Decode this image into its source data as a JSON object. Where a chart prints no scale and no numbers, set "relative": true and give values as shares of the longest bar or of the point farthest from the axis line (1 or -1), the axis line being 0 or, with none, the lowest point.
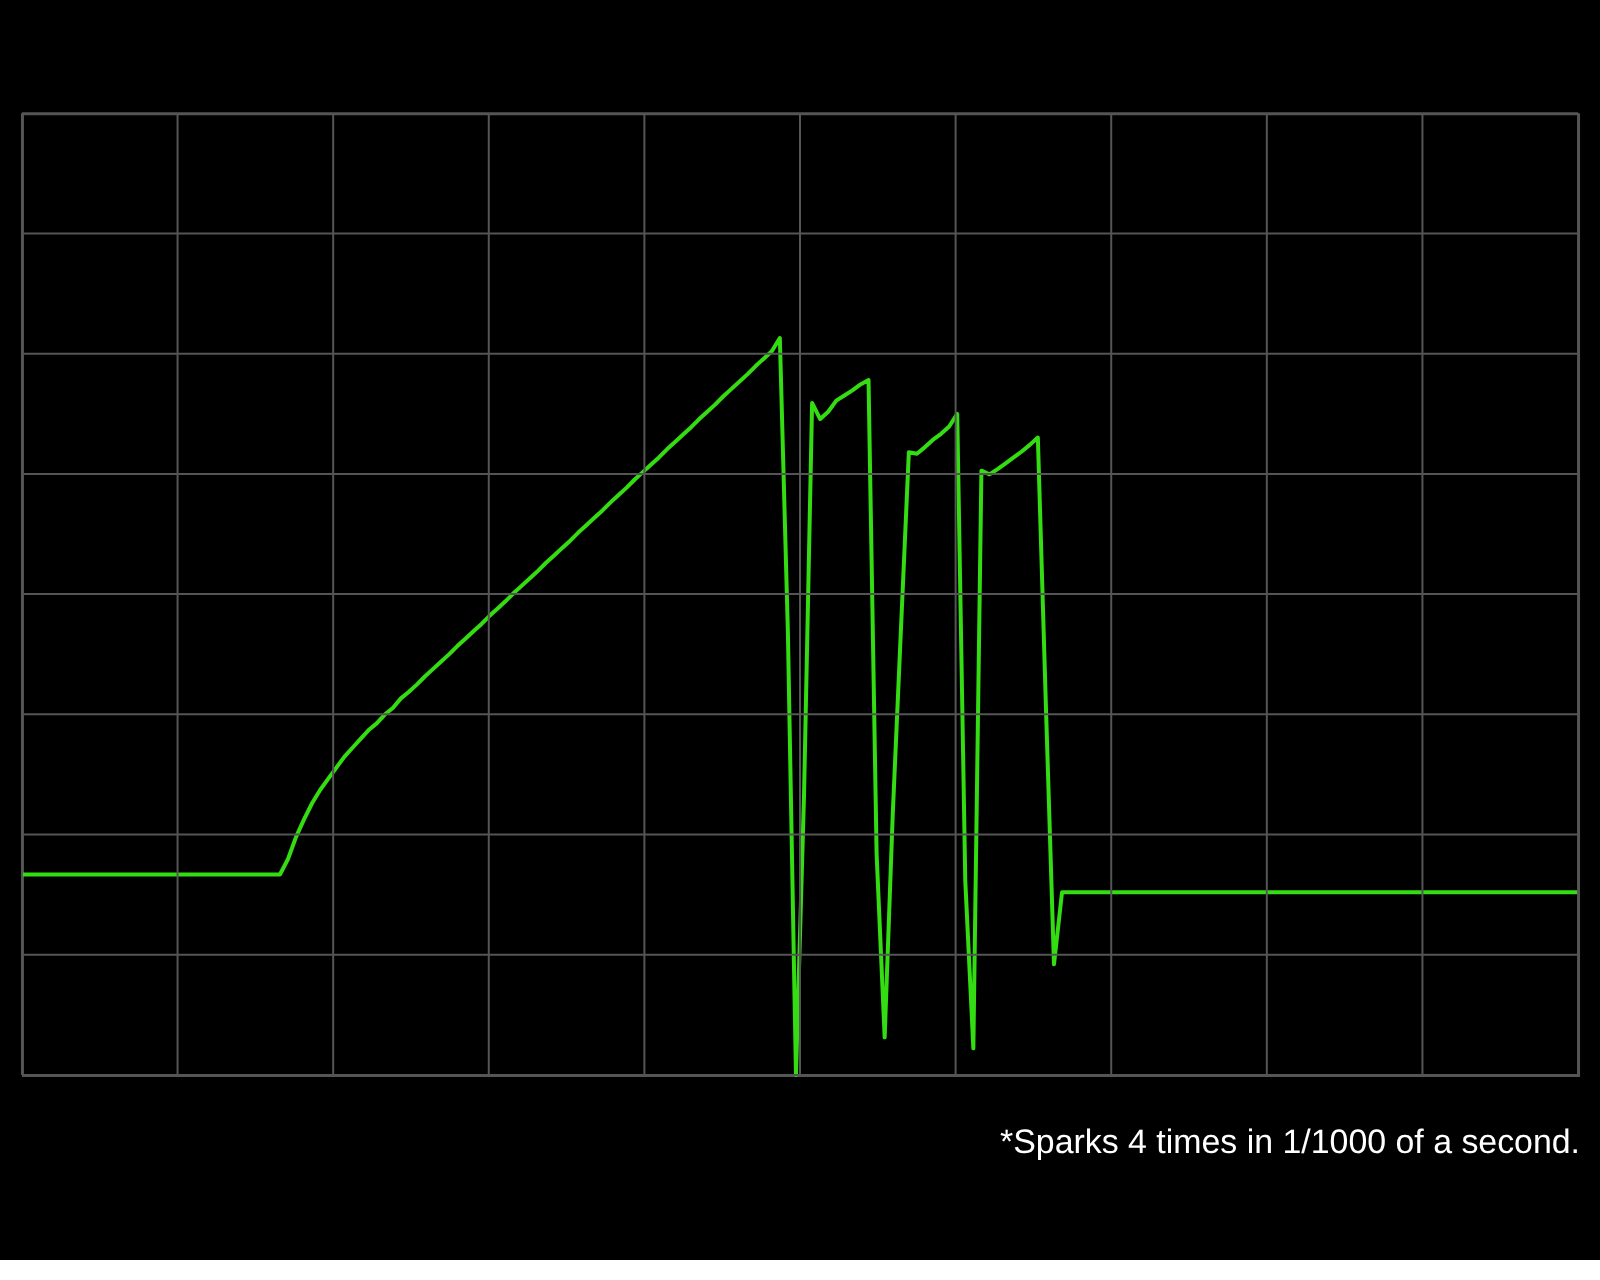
{
  "chart_data": {
    "type": "line",
    "relative": true,
    "grid": true,
    "tick_labels": false,
    "categories": [
      null,
      null,
      null,
      null,
      null,
      null,
      null,
      null,
      null,
      null,
      null,
      null,
      null,
      null,
      null,
      null,
      null,
      null,
      null,
      null,
      null,
      null,
      null,
      null,
      null,
      null,
      null,
      null,
      null,
      null,
      null,
      null,
      null,
      null,
      null,
      null,
      null,
      null,
      null,
      null,
      null,
      null,
      null,
      null,
      null,
      null,
      null,
      null,
      null,
      null,
      null,
      null,
      null,
      null,
      null,
      null,
      null,
      null,
      null,
      null,
      null,
      null,
      null,
      null,
      null,
      null,
      null,
      null,
      null,
      null,
      null,
      null,
      null,
      null,
      null,
      null,
      null,
      null,
      null,
      null,
      null,
      null,
      null,
      null,
      null,
      null,
      null,
      null,
      null,
      null,
      null,
      null,
      null,
      null,
      null,
      null,
      null,
      null,
      null,
      null,
      null,
      null,
      null,
      null,
      null,
      null,
      null,
      null,
      null,
      null,
      null,
      null,
      null,
      null,
      null,
      null,
      null,
      null,
      null,
      null,
      null,
      null,
      null,
      null,
      null,
      null,
      null,
      null,
      null,
      null,
      null,
      null,
      null,
      null,
      null,
      null,
      null,
      null,
      null,
      null,
      null,
      null,
      null,
      null,
      null,
      null,
      null,
      null,
      null,
      null,
      null,
      null,
      null,
      null,
      null,
      null,
      null,
      null,
      null,
      null,
      null,
      null,
      null,
      null,
      null,
      null,
      null,
      null,
      null,
      null,
      null,
      null,
      null,
      null,
      null,
      null,
      null,
      null,
      null,
      null,
      null,
      null,
      null,
      null,
      null,
      null,
      null,
      null,
      null,
      null,
      null,
      null,
      null,
      null
    ],
    "annotations": [
      "*Sparks 4 times in 1/1000 of a second."
    ],
    "series": [
      {
        "color": "#33dd11",
        "values": [
          0.272,
          0.272,
          0.272,
          0.272,
          0.272,
          0.272,
          0.272,
          0.272,
          0.272,
          0.272,
          0.272,
          0.272,
          0.272,
          0.272,
          0.272,
          0.272,
          0.272,
          0.272,
          0.272,
          0.272,
          0.272,
          0.272,
          0.272,
          0.272,
          0.272,
          0.272,
          0.272,
          0.272,
          0.272,
          0.272,
          0.272,
          0.272,
          0.272,
          0.293,
          0.323,
          0.347,
          0.369,
          0.387,
          0.402,
          0.417,
          0.432,
          0.444,
          0.456,
          0.468,
          0.477,
          0.489,
          0.498,
          0.511,
          0.52,
          0.53,
          0.541,
          0.551,
          0.561,
          0.571,
          0.582,
          0.592,
          0.602,
          0.612,
          0.623,
          0.633,
          0.643,
          0.654,
          0.664,
          0.674,
          0.684,
          0.695,
          0.705,
          0.715,
          0.725,
          0.736,
          0.746,
          0.756,
          0.766,
          0.777,
          0.787,
          0.797,
          0.808,
          0.818,
          0.828,
          0.838,
          0.849,
          0.859,
          0.869,
          0.879,
          0.89,
          0.9,
          0.91,
          0.921,
          0.931,
          0.941,
          0.951,
          0.962,
          0.972,
          0.982,
          1.0,
          0.6,
          0.0,
          0.38,
          0.912,
          0.89,
          0.9,
          0.915,
          0.922,
          0.929,
          0.937,
          0.943,
          0.3,
          0.051,
          0.353,
          0.6,
          0.845,
          0.843,
          0.852,
          0.862,
          0.87,
          0.88,
          0.897,
          0.263,
          0.036,
          0.82,
          0.815,
          0.822,
          0.83,
          0.838,
          0.846,
          0.855,
          0.865,
          0.5,
          0.15,
          0.248,
          0.248,
          0.248,
          0.248,
          0.248,
          0.248,
          0.248,
          0.248,
          0.248,
          0.248,
          0.248,
          0.248,
          0.248,
          0.248,
          0.248,
          0.248,
          0.248,
          0.248,
          0.248,
          0.248,
          0.248,
          0.248,
          0.248,
          0.248,
          0.248,
          0.248,
          0.248,
          0.248,
          0.248,
          0.248,
          0.248,
          0.248,
          0.248,
          0.248,
          0.248,
          0.248,
          0.248,
          0.248,
          0.248,
          0.248,
          0.248,
          0.248,
          0.248,
          0.248,
          0.248,
          0.248,
          0.248,
          0.248,
          0.248,
          0.248,
          0.248,
          0.248,
          0.248,
          0.248,
          0.248,
          0.248,
          0.248,
          0.248,
          0.248,
          0.248,
          0.248,
          0.248,
          0.248,
          0.248,
          0.248
        ]
      }
    ]
  }
}
